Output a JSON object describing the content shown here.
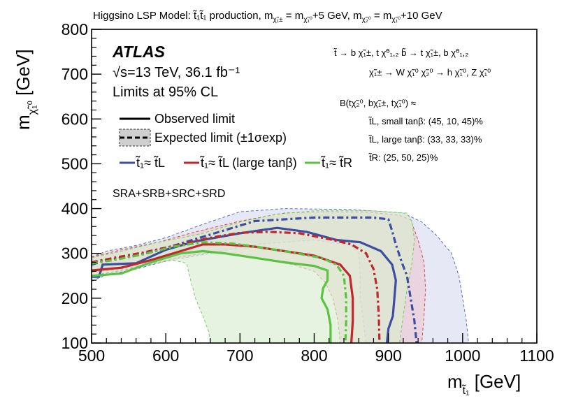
{
  "chart_data": {
    "type": "line",
    "title": "Higgsino LSP Model: t̃₁t̃₁ production, m(χ̃₁±) = m(χ̃₁⁰)+5 GeV, m(χ̃₂⁰) = m(χ̃₁⁰)+10 GeV",
    "xlabel": "m(t̃₁) [GeV]",
    "ylabel": "m(χ̃₁⁰) [GeV]",
    "xlim": [
      500,
      1100
    ],
    "ylim": [
      100,
      800
    ],
    "x_ticks": [
      "500",
      "600",
      "700",
      "800",
      "900",
      "1000",
      "1100"
    ],
    "y_ticks": [
      "100",
      "200",
      "300",
      "400",
      "500",
      "600",
      "700",
      "800"
    ],
    "grid": false,
    "experiment": "ATLAS",
    "energy_label": "√s=13 TeV, 36.1 fb⁻¹",
    "cl_label": "Limits at 95% CL",
    "signal_regions": "SRA+SRB+SRC+SRD",
    "legend": {
      "placement": "top-left",
      "observed": "Observed limit",
      "expected": "Expected limit (±1σexp)",
      "scenarios": [
        {
          "label": "t̃₁≈ t̃L",
          "color": "#3d4ea0"
        },
        {
          "label": "t̃₁≈ t̃L (large tanβ)",
          "color": "#c0272d"
        },
        {
          "label": "t̃₁≈ t̃R",
          "color": "#5cc242"
        }
      ]
    },
    "decay_info": [
      "t̃ → b χ̃₁±, t χ̃⁰₁,₂    b̃ → t χ̃₁±, b χ̃⁰₁,₂",
      "χ̃₁± → W χ̃₁⁰    χ̃₂⁰ → h χ̃₁⁰, Z χ̃₁⁰"
    ],
    "br_title": "B(tχ̃₂⁰, bχ̃₁±, tχ̃₁⁰) ≈",
    "br_entries": [
      "t̃L, small tanβ: (45, 10, 45)%",
      "t̃L, large tanβ: (33, 33, 33)%",
      "t̃R: (25, 50, 25)%"
    ],
    "series": [
      {
        "name": "t̃₁≈ t̃L",
        "color": "#3d4ea0",
        "band_fill": "#d8dcef",
        "observed": [
          [
            500,
            248
          ],
          [
            510,
            248
          ],
          [
            515,
            275
          ],
          [
            560,
            278
          ],
          [
            600,
            308
          ],
          [
            640,
            327
          ],
          [
            700,
            345
          ],
          [
            750,
            357
          ],
          [
            790,
            348
          ],
          [
            830,
            330
          ],
          [
            862,
            325
          ],
          [
            890,
            305
          ],
          [
            905,
            275
          ],
          [
            910,
            240
          ],
          [
            908,
            200
          ],
          [
            906,
            160
          ],
          [
            900,
            132
          ],
          [
            898,
            100
          ]
        ],
        "expected": [
          [
            500,
            275
          ],
          [
            520,
            285
          ],
          [
            560,
            295
          ],
          [
            600,
            312
          ],
          [
            660,
            342
          ],
          [
            720,
            372
          ],
          [
            800,
            380
          ],
          [
            880,
            380
          ],
          [
            900,
            376
          ],
          [
            905,
            350
          ],
          [
            910,
            320
          ],
          [
            918,
            280
          ],
          [
            925,
            250
          ],
          [
            930,
            200
          ],
          [
            935,
            150
          ],
          [
            938,
            100
          ]
        ],
        "band_up": [
          [
            500,
            292
          ],
          [
            520,
            305
          ],
          [
            560,
            318
          ],
          [
            600,
            335
          ],
          [
            650,
            365
          ],
          [
            700,
            393
          ],
          [
            760,
            400
          ],
          [
            850,
            398
          ],
          [
            920,
            390
          ],
          [
            945,
            370
          ],
          [
            965,
            340
          ],
          [
            985,
            300
          ],
          [
            995,
            250
          ],
          [
            1000,
            200
          ],
          [
            1005,
            150
          ],
          [
            1008,
            100
          ]
        ],
        "band_down": [
          [
            500,
            238
          ],
          [
            520,
            252
          ],
          [
            560,
            265
          ],
          [
            600,
            283
          ],
          [
            660,
            300
          ],
          [
            720,
            320
          ],
          [
            800,
            330
          ],
          [
            850,
            318
          ],
          [
            860,
            300
          ],
          [
            862,
            250
          ],
          [
            862,
            200
          ],
          [
            866,
            150
          ],
          [
            870,
            100
          ]
        ]
      },
      {
        "name": "t̃₁≈ t̃L (large tanβ)",
        "color": "#c0272d",
        "band_fill": "#edc9d2",
        "observed": [
          [
            500,
            262
          ],
          [
            540,
            268
          ],
          [
            580,
            285
          ],
          [
            620,
            305
          ],
          [
            650,
            320
          ],
          [
            680,
            320
          ],
          [
            720,
            315
          ],
          [
            760,
            305
          ],
          [
            800,
            295
          ],
          [
            835,
            275
          ],
          [
            848,
            250
          ],
          [
            852,
            200
          ],
          [
            852,
            150
          ],
          [
            850,
            100
          ]
        ],
        "expected": [
          [
            500,
            280
          ],
          [
            530,
            290
          ],
          [
            570,
            302
          ],
          [
            620,
            320
          ],
          [
            660,
            335
          ],
          [
            700,
            346
          ],
          [
            740,
            348
          ],
          [
            780,
            345
          ],
          [
            820,
            332
          ],
          [
            850,
            320
          ],
          [
            870,
            300
          ],
          [
            880,
            265
          ],
          [
            885,
            220
          ],
          [
            887,
            160
          ],
          [
            888,
            100
          ]
        ],
        "band_up": [
          [
            500,
            292
          ],
          [
            540,
            308
          ],
          [
            590,
            325
          ],
          [
            640,
            348
          ],
          [
            700,
            372
          ],
          [
            760,
            390
          ],
          [
            820,
            393
          ],
          [
            880,
            391
          ],
          [
            915,
            385
          ],
          [
            930,
            375
          ],
          [
            940,
            330
          ],
          [
            948,
            280
          ],
          [
            950,
            220
          ],
          [
            948,
            160
          ],
          [
            945,
            100
          ]
        ],
        "band_down": [
          [
            500,
            258
          ],
          [
            540,
            265
          ],
          [
            580,
            278
          ],
          [
            620,
            292
          ],
          [
            660,
            302
          ],
          [
            700,
            295
          ],
          [
            740,
            285
          ],
          [
            770,
            275
          ],
          [
            800,
            260
          ],
          [
            815,
            235
          ],
          [
            825,
            200
          ],
          [
            832,
            150
          ],
          [
            835,
            100
          ]
        ]
      },
      {
        "name": "t̃₁≈ t̃R",
        "color": "#5cc242",
        "band_fill": "#d8ecd0",
        "observed": [
          [
            500,
            250
          ],
          [
            540,
            255
          ],
          [
            580,
            280
          ],
          [
            620,
            300
          ],
          [
            650,
            305
          ],
          [
            680,
            300
          ],
          [
            720,
            290
          ],
          [
            760,
            280
          ],
          [
            800,
            272
          ],
          [
            818,
            262
          ],
          [
            818,
            240
          ],
          [
            812,
            222
          ],
          [
            810,
            200
          ],
          [
            818,
            175
          ],
          [
            822,
            140
          ],
          [
            822,
            100
          ]
        ],
        "expected": [
          [
            500,
            278
          ],
          [
            530,
            285
          ],
          [
            570,
            298
          ],
          [
            610,
            315
          ],
          [
            650,
            325
          ],
          [
            690,
            322
          ],
          [
            730,
            313
          ],
          [
            770,
            302
          ],
          [
            810,
            290
          ],
          [
            830,
            275
          ],
          [
            840,
            250
          ],
          [
            843,
            200
          ],
          [
            843,
            150
          ],
          [
            842,
            100
          ]
        ],
        "band_up": [
          [
            500,
            290
          ],
          [
            540,
            305
          ],
          [
            590,
            325
          ],
          [
            650,
            345
          ],
          [
            700,
            370
          ],
          [
            750,
            388
          ],
          [
            800,
            395
          ],
          [
            880,
            395
          ],
          [
            925,
            390
          ],
          [
            932,
            370
          ],
          [
            935,
            330
          ],
          [
            932,
            280
          ],
          [
            925,
            220
          ],
          [
            920,
            160
          ],
          [
            915,
            100
          ]
        ],
        "band_down": [
          [
            500,
            250
          ],
          [
            540,
            262
          ],
          [
            580,
            276
          ],
          [
            610,
            285
          ],
          [
            628,
            278
          ],
          [
            632,
            250
          ],
          [
            640,
            200
          ],
          [
            650,
            160
          ],
          [
            658,
            125
          ],
          [
            660,
            100
          ]
        ]
      }
    ]
  }
}
